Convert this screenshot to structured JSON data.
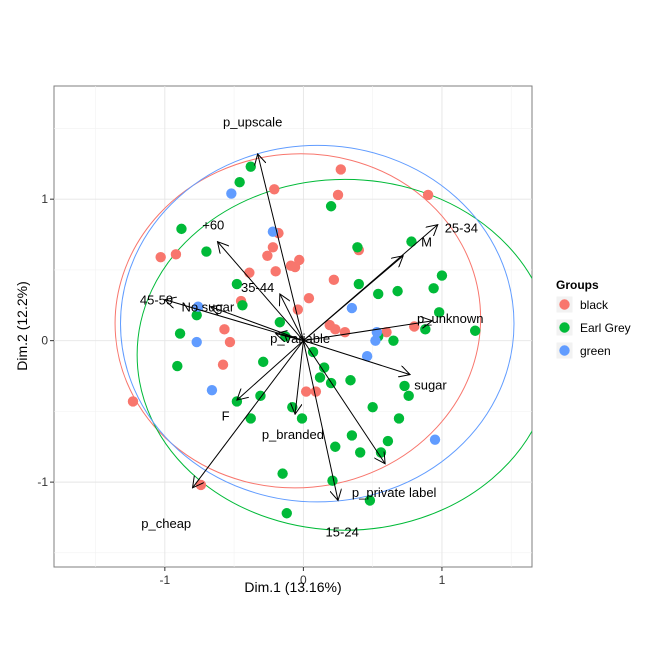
{
  "chart_data": {
    "type": "scatter",
    "xlabel": "Dim.1 (13.16%)",
    "ylabel": "Dim.2 (12.2%)",
    "xlim": [
      -1.8,
      1.65
    ],
    "ylim": [
      -1.6,
      1.8
    ],
    "x_ticks": [
      -1,
      0,
      1
    ],
    "y_ticks": [
      -1,
      0,
      1
    ],
    "x_tick_labels": [
      "-1",
      "0",
      "1"
    ],
    "y_tick_labels": [
      "-1",
      "0",
      "1"
    ],
    "grid": true,
    "legend": {
      "title": "Groups",
      "position": "right",
      "entries": [
        {
          "label": "black",
          "color": "#F8766D"
        },
        {
          "label": "Earl Grey",
          "color": "#00BA38"
        },
        {
          "label": "green",
          "color": "#619CFF"
        }
      ]
    },
    "ellipses": [
      {
        "group": "black",
        "color": "#F8766D",
        "cx": -0.04,
        "cy": 0.14,
        "rx": 1.32,
        "ry": 1.18,
        "angle": -5
      },
      {
        "group": "Earl Grey",
        "color": "#00BA38",
        "cx": 0.3,
        "cy": -0.1,
        "rx": 1.5,
        "ry": 1.24,
        "angle": 0
      },
      {
        "group": "green",
        "color": "#619CFF",
        "cx": 0.1,
        "cy": 0.12,
        "rx": 1.42,
        "ry": 1.26,
        "angle": 0
      }
    ],
    "arrows": [
      {
        "label": "p_upscale",
        "x": -0.33,
        "y": 1.32,
        "lx": -0.58,
        "ly": 1.55
      },
      {
        "label": "+60",
        "x": -0.62,
        "y": 0.7,
        "lx": -0.73,
        "ly": 0.82
      },
      {
        "label": "25-34",
        "x": 0.97,
        "y": 0.82,
        "lx": 1.02,
        "ly": 0.8
      },
      {
        "label": "M",
        "x": 0.72,
        "y": 0.6,
        "lx": 0.85,
        "ly": 0.7
      },
      {
        "label": "45-59",
        "x": -1.0,
        "y": 0.29,
        "lx": -1.18,
        "ly": 0.29
      },
      {
        "label": "No sugar",
        "x": -0.67,
        "y": 0.24,
        "lx": -0.88,
        "ly": 0.24
      },
      {
        "label": "35-44",
        "x": -0.17,
        "y": 0.33,
        "lx": -0.45,
        "ly": 0.38
      },
      {
        "label": "p_unknown",
        "x": 0.93,
        "y": 0.14,
        "lx": 0.82,
        "ly": 0.16
      },
      {
        "label": "p_variable",
        "x": -0.2,
        "y": 0.05,
        "lx": -0.24,
        "ly": 0.02
      },
      {
        "label": "sugar",
        "x": 0.77,
        "y": -0.24,
        "lx": 0.8,
        "ly": -0.31
      },
      {
        "label": "F",
        "x": -0.48,
        "y": -0.42,
        "lx": -0.59,
        "ly": -0.53
      },
      {
        "label": "p_branded",
        "x": -0.06,
        "y": -0.52,
        "lx": -0.3,
        "ly": -0.66
      },
      {
        "label": "p_private label",
        "x": 0.59,
        "y": -0.87,
        "lx": 0.35,
        "ly": -1.07
      },
      {
        "label": "p_cheap",
        "x": -0.8,
        "y": -1.04,
        "lx": -1.17,
        "ly": -1.29
      },
      {
        "label": "15-24",
        "x": 0.25,
        "y": -1.13,
        "lx": 0.16,
        "ly": -1.35
      }
    ],
    "series": [
      {
        "name": "black",
        "color": "#F8766D",
        "points": [
          [
            0.27,
            1.21
          ],
          [
            -0.21,
            1.07
          ],
          [
            0.25,
            1.03
          ],
          [
            0.9,
            1.03
          ],
          [
            -0.18,
            0.76
          ],
          [
            -0.22,
            0.66
          ],
          [
            -0.26,
            0.6
          ],
          [
            -0.92,
            0.61
          ],
          [
            -1.03,
            0.59
          ],
          [
            0.4,
            0.64
          ],
          [
            -0.06,
            0.52
          ],
          [
            -0.39,
            0.48
          ],
          [
            -0.09,
            0.53
          ],
          [
            -0.2,
            0.49
          ],
          [
            -0.03,
            0.57
          ],
          [
            0.22,
            0.43
          ],
          [
            -0.45,
            0.28
          ],
          [
            0.04,
            0.3
          ],
          [
            -0.04,
            0.22
          ],
          [
            0.19,
            0.11
          ],
          [
            0.3,
            0.06
          ],
          [
            0.6,
            0.06
          ],
          [
            0.8,
            0.1
          ],
          [
            -0.57,
            0.08
          ],
          [
            -0.53,
            -0.01
          ],
          [
            -0.58,
            -0.17
          ],
          [
            0.23,
            0.08
          ],
          [
            0.02,
            -0.36
          ],
          [
            0.09,
            -0.36
          ],
          [
            -1.23,
            -0.43
          ],
          [
            -0.74,
            -1.02
          ]
        ]
      },
      {
        "name": "Earl Grey",
        "color": "#00BA38",
        "points": [
          [
            -0.38,
            1.23
          ],
          [
            -0.46,
            1.12
          ],
          [
            0.2,
            0.95
          ],
          [
            -0.88,
            0.79
          ],
          [
            0.78,
            0.7
          ],
          [
            -0.7,
            0.63
          ],
          [
            0.39,
            0.66
          ],
          [
            0.4,
            0.4
          ],
          [
            1.0,
            0.46
          ],
          [
            0.94,
            0.37
          ],
          [
            0.54,
            0.33
          ],
          [
            0.68,
            0.35
          ],
          [
            -0.48,
            0.4
          ],
          [
            -0.44,
            0.25
          ],
          [
            -0.17,
            0.13
          ],
          [
            -0.13,
            0.03
          ],
          [
            0.98,
            0.2
          ],
          [
            1.24,
            0.07
          ],
          [
            0.88,
            0.08
          ],
          [
            0.54,
            0.03
          ],
          [
            0.65,
            0.0
          ],
          [
            -0.89,
            0.05
          ],
          [
            -0.77,
            0.18
          ],
          [
            0.07,
            -0.08
          ],
          [
            -0.91,
            -0.18
          ],
          [
            0.15,
            -0.19
          ],
          [
            -0.29,
            -0.15
          ],
          [
            0.12,
            -0.26
          ],
          [
            0.2,
            -0.3
          ],
          [
            0.34,
            -0.28
          ],
          [
            0.73,
            -0.32
          ],
          [
            0.76,
            -0.39
          ],
          [
            -0.48,
            -0.43
          ],
          [
            -0.31,
            -0.39
          ],
          [
            -0.08,
            -0.47
          ],
          [
            0.5,
            -0.47
          ],
          [
            -0.38,
            -0.55
          ],
          [
            0.69,
            -0.55
          ],
          [
            -0.01,
            -0.55
          ],
          [
            0.35,
            -0.67
          ],
          [
            0.23,
            -0.75
          ],
          [
            0.41,
            -0.79
          ],
          [
            0.61,
            -0.71
          ],
          [
            -0.15,
            -0.94
          ],
          [
            0.21,
            -0.99
          ],
          [
            0.48,
            -1.13
          ],
          [
            -0.12,
            -1.22
          ],
          [
            0.56,
            -0.79
          ]
        ]
      },
      {
        "name": "green",
        "color": "#619CFF",
        "points": [
          [
            -0.52,
            1.04
          ],
          [
            -0.22,
            0.77
          ],
          [
            -0.76,
            0.24
          ],
          [
            0.35,
            0.23
          ],
          [
            0.53,
            0.06
          ],
          [
            -0.77,
            -0.01
          ],
          [
            0.52,
            0.0
          ],
          [
            0.46,
            -0.11
          ],
          [
            -0.66,
            -0.35
          ],
          [
            0.95,
            -0.7
          ]
        ]
      }
    ]
  }
}
